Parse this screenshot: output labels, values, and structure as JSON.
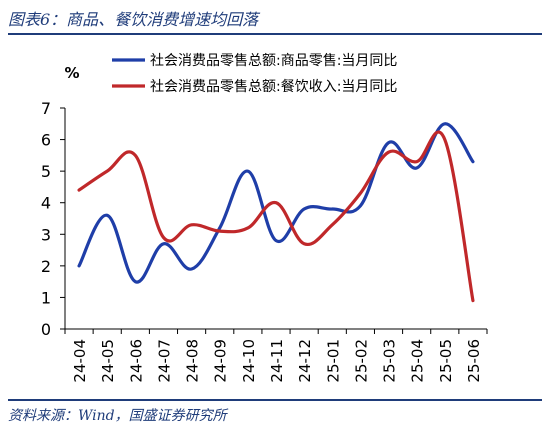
{
  "title": "图表6：商品、餐饮消费增速均回落",
  "source": "资料来源：Wind，国盛证券研究所",
  "colors": {
    "accent": "#1f3c7a",
    "series1": "#1f3ea8",
    "series2": "#c0282a"
  },
  "chart_data": {
    "type": "line",
    "unit_label": "%",
    "x": [
      "24-04",
      "24-05",
      "24-06",
      "24-07",
      "24-08",
      "24-09",
      "24-10",
      "24-11",
      "24-12",
      "25-01",
      "25-02",
      "25-03",
      "25-04",
      "25-05",
      "25-06"
    ],
    "ylim": [
      0,
      7
    ],
    "yticks": [
      0,
      1,
      2,
      3,
      4,
      5,
      6,
      7
    ],
    "grid": false,
    "legend_position": "top",
    "series": [
      {
        "name": "社会消费品零售总额:商品零售:当月同比",
        "color": "#1f3ea8",
        "values": [
          2.0,
          3.6,
          1.5,
          2.7,
          1.9,
          3.2,
          5.0,
          2.8,
          3.8,
          3.8,
          3.9,
          5.9,
          5.1,
          6.5,
          5.3
        ]
      },
      {
        "name": "社会消费品零售总额:餐饮收入:当月同比",
        "color": "#c0282a",
        "values": [
          4.4,
          5.0,
          5.5,
          2.9,
          3.3,
          3.1,
          3.2,
          4.0,
          2.7,
          3.3,
          4.3,
          5.6,
          5.3,
          6.0,
          0.9
        ]
      }
    ]
  }
}
